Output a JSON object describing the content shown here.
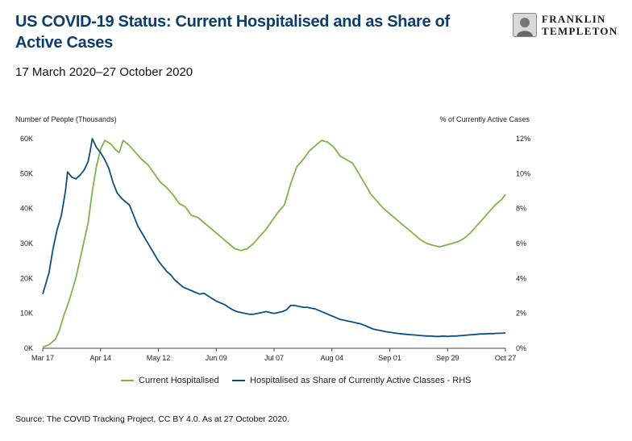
{
  "header": {
    "title": "US COVID-19 Status: Current Hospitalised and as Share of Active Cases",
    "subtitle": "17 March 2020–27 October 2020"
  },
  "logo": {
    "line1": "FRANKLIN",
    "line2": "TEMPLETON"
  },
  "footer": {
    "source": "Source: The COVID Tracking Project, CC BY 4.0. As at 27 October 2020."
  },
  "colors": {
    "green": "#7ab648",
    "blue": "#0b4f85",
    "title": "#0b3d6e"
  },
  "chart_data": {
    "type": "line",
    "ylabel_left": "Number of People (Thousands)",
    "ylabel_right": "% of Currently Active Cases",
    "x_ticks": [
      "Mar 17",
      "Apr 14",
      "May 12",
      "Jun 09",
      "Jul 07",
      "Aug 04",
      "Sep 01",
      "Sep 29",
      "Oct 27"
    ],
    "x_range_days": [
      0,
      224
    ],
    "y_left": {
      "range": [
        0,
        60
      ],
      "ticks": [
        0,
        10,
        20,
        30,
        40,
        50,
        60
      ],
      "tick_labels": [
        "0K",
        "10K",
        "20K",
        "30K",
        "40K",
        "50K",
        "60K"
      ]
    },
    "y_right": {
      "range": [
        0,
        12
      ],
      "ticks": [
        0,
        2,
        4,
        6,
        8,
        10,
        12
      ],
      "tick_labels": [
        "0%",
        "2%",
        "4%",
        "6%",
        "8%",
        "10%",
        "12%"
      ]
    },
    "series": [
      {
        "name": "Current Hospitalised",
        "axis": "left",
        "color": "#7ab648",
        "points": [
          [
            0,
            0.3
          ],
          [
            3,
            1
          ],
          [
            6,
            2.5
          ],
          [
            8,
            5
          ],
          [
            10,
            9
          ],
          [
            13,
            14
          ],
          [
            16,
            20
          ],
          [
            19,
            28
          ],
          [
            22,
            36
          ],
          [
            24,
            45
          ],
          [
            26,
            52
          ],
          [
            28,
            57
          ],
          [
            30,
            59.5
          ],
          [
            33,
            58.5
          ],
          [
            35,
            57
          ],
          [
            37,
            56
          ],
          [
            39,
            59.5
          ],
          [
            42,
            58
          ],
          [
            45,
            56
          ],
          [
            48,
            54
          ],
          [
            51,
            52.5
          ],
          [
            54,
            50
          ],
          [
            57,
            47.5
          ],
          [
            60,
            46
          ],
          [
            63,
            44
          ],
          [
            66,
            41.5
          ],
          [
            69,
            40.5
          ],
          [
            72,
            38
          ],
          [
            75,
            37.5
          ],
          [
            78,
            36
          ],
          [
            81,
            34.5
          ],
          [
            84,
            33
          ],
          [
            87,
            31.5
          ],
          [
            90,
            30
          ],
          [
            93,
            28.5
          ],
          [
            96,
            28
          ],
          [
            99,
            28.5
          ],
          [
            102,
            30
          ],
          [
            105,
            32
          ],
          [
            108,
            34
          ],
          [
            111,
            36.5
          ],
          [
            114,
            39
          ],
          [
            117,
            41
          ],
          [
            120,
            47
          ],
          [
            123,
            52
          ],
          [
            126,
            54
          ],
          [
            129,
            56.5
          ],
          [
            132,
            58
          ],
          [
            135,
            59.5
          ],
          [
            138,
            59
          ],
          [
            141,
            57.5
          ],
          [
            144,
            55
          ],
          [
            147,
            54
          ],
          [
            150,
            53
          ],
          [
            153,
            50
          ],
          [
            156,
            47
          ],
          [
            159,
            44
          ],
          [
            162,
            42
          ],
          [
            165,
            40
          ],
          [
            168,
            38.5
          ],
          [
            171,
            37
          ],
          [
            174,
            35.5
          ],
          [
            177,
            34
          ],
          [
            180,
            32.5
          ],
          [
            183,
            31
          ],
          [
            186,
            30
          ],
          [
            189,
            29.5
          ],
          [
            192,
            29
          ],
          [
            195,
            29.5
          ],
          [
            198,
            30
          ],
          [
            201,
            30.5
          ],
          [
            204,
            31.5
          ],
          [
            207,
            33
          ],
          [
            210,
            35
          ],
          [
            213,
            37
          ],
          [
            216,
            39
          ],
          [
            219,
            41
          ],
          [
            222,
            42.5
          ],
          [
            224,
            44
          ]
        ]
      },
      {
        "name": "Hospitalised as Share of Currently Active Classes - RHS",
        "axis": "right",
        "color": "#0b4f85",
        "points": [
          [
            0,
            3.1
          ],
          [
            3,
            4.3
          ],
          [
            5,
            5.7
          ],
          [
            7,
            6.8
          ],
          [
            9,
            7.6
          ],
          [
            11,
            9.0
          ],
          [
            12,
            10.1
          ],
          [
            14,
            9.8
          ],
          [
            16,
            9.7
          ],
          [
            18,
            9.9
          ],
          [
            20,
            10.2
          ],
          [
            22,
            10.7
          ],
          [
            23,
            11.3
          ],
          [
            24,
            12.0
          ],
          [
            26,
            11.5
          ],
          [
            28,
            11.2
          ],
          [
            30,
            10.8
          ],
          [
            32,
            10.3
          ],
          [
            34,
            9.5
          ],
          [
            36,
            8.9
          ],
          [
            38,
            8.6
          ],
          [
            40,
            8.4
          ],
          [
            42,
            8.2
          ],
          [
            44,
            7.6
          ],
          [
            46,
            7.0
          ],
          [
            48,
            6.6
          ],
          [
            50,
            6.2
          ],
          [
            52,
            5.8
          ],
          [
            54,
            5.4
          ],
          [
            56,
            5.0
          ],
          [
            58,
            4.7
          ],
          [
            60,
            4.4
          ],
          [
            62,
            4.2
          ],
          [
            64,
            3.9
          ],
          [
            66,
            3.7
          ],
          [
            68,
            3.5
          ],
          [
            70,
            3.4
          ],
          [
            72,
            3.3
          ],
          [
            74,
            3.2
          ],
          [
            76,
            3.1
          ],
          [
            78,
            3.15
          ],
          [
            80,
            3.0
          ],
          [
            82,
            2.85
          ],
          [
            84,
            2.7
          ],
          [
            86,
            2.6
          ],
          [
            88,
            2.5
          ],
          [
            90,
            2.35
          ],
          [
            92,
            2.2
          ],
          [
            94,
            2.1
          ],
          [
            96,
            2.05
          ],
          [
            98,
            2.0
          ],
          [
            100,
            1.95
          ],
          [
            102,
            1.95
          ],
          [
            104,
            2.0
          ],
          [
            106,
            2.05
          ],
          [
            108,
            2.1
          ],
          [
            110,
            2.05
          ],
          [
            112,
            2.0
          ],
          [
            114,
            2.05
          ],
          [
            116,
            2.1
          ],
          [
            118,
            2.2
          ],
          [
            120,
            2.45
          ],
          [
            122,
            2.45
          ],
          [
            124,
            2.4
          ],
          [
            126,
            2.35
          ],
          [
            128,
            2.35
          ],
          [
            130,
            2.3
          ],
          [
            132,
            2.25
          ],
          [
            134,
            2.15
          ],
          [
            136,
            2.05
          ],
          [
            138,
            1.95
          ],
          [
            140,
            1.85
          ],
          [
            142,
            1.75
          ],
          [
            144,
            1.65
          ],
          [
            146,
            1.6
          ],
          [
            148,
            1.55
          ],
          [
            150,
            1.5
          ],
          [
            152,
            1.45
          ],
          [
            154,
            1.4
          ],
          [
            156,
            1.3
          ],
          [
            158,
            1.2
          ],
          [
            160,
            1.1
          ],
          [
            162,
            1.05
          ],
          [
            164,
            1.0
          ],
          [
            166,
            0.95
          ],
          [
            168,
            0.92
          ],
          [
            170,
            0.88
          ],
          [
            172,
            0.85
          ],
          [
            174,
            0.82
          ],
          [
            176,
            0.8
          ],
          [
            178,
            0.78
          ],
          [
            180,
            0.76
          ],
          [
            182,
            0.74
          ],
          [
            184,
            0.72
          ],
          [
            186,
            0.7
          ],
          [
            188,
            0.7
          ],
          [
            190,
            0.68
          ],
          [
            192,
            0.68
          ],
          [
            194,
            0.7
          ],
          [
            196,
            0.68
          ],
          [
            198,
            0.7
          ],
          [
            200,
            0.7
          ],
          [
            202,
            0.72
          ],
          [
            204,
            0.74
          ],
          [
            206,
            0.76
          ],
          [
            208,
            0.78
          ],
          [
            210,
            0.8
          ],
          [
            212,
            0.82
          ],
          [
            214,
            0.82
          ],
          [
            216,
            0.84
          ],
          [
            218,
            0.84
          ],
          [
            220,
            0.86
          ],
          [
            222,
            0.86
          ],
          [
            224,
            0.88
          ]
        ]
      }
    ]
  }
}
